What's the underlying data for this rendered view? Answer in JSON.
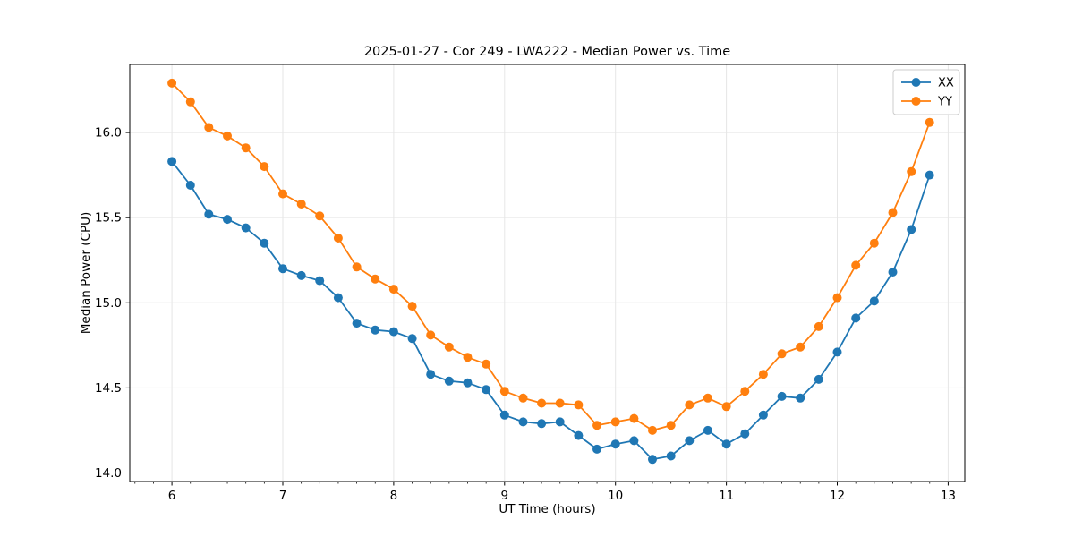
{
  "chart_data": {
    "type": "line",
    "title": "2025-01-27 - Cor 249 - LWA222 - Median Power vs. Time",
    "xlabel": "UT Time (hours)",
    "ylabel": "Median Power (CPU)",
    "xlim": [
      5.62,
      13.15
    ],
    "ylim": [
      13.95,
      16.4
    ],
    "x_ticks": [
      6,
      7,
      8,
      9,
      10,
      11,
      12,
      13
    ],
    "x_tick_labels": [
      "6",
      "7",
      "8",
      "9",
      "10",
      "11",
      "12",
      "13"
    ],
    "x_minor_tick_step": 0.16667,
    "y_ticks": [
      14.0,
      14.5,
      15.0,
      15.5,
      16.0
    ],
    "y_tick_labels": [
      "14.0",
      "14.5",
      "15.0",
      "15.5",
      "16.0"
    ],
    "grid": true,
    "legend_position": "upper right",
    "x": [
      6.0,
      6.167,
      6.333,
      6.5,
      6.667,
      6.833,
      7.0,
      7.167,
      7.333,
      7.5,
      7.667,
      7.833,
      8.0,
      8.167,
      8.333,
      8.5,
      8.667,
      8.833,
      9.0,
      9.167,
      9.333,
      9.5,
      9.667,
      9.833,
      10.0,
      10.167,
      10.333,
      10.5,
      10.667,
      10.833,
      11.0,
      11.167,
      11.333,
      11.5,
      11.667,
      11.833,
      12.0,
      12.167,
      12.333,
      12.5,
      12.667,
      12.833
    ],
    "series": [
      {
        "name": "XX",
        "color": "#1f77b4",
        "values": [
          15.83,
          15.69,
          15.52,
          15.49,
          15.44,
          15.35,
          15.2,
          15.16,
          15.13,
          15.03,
          14.88,
          14.84,
          14.83,
          14.79,
          14.58,
          14.54,
          14.53,
          14.49,
          14.34,
          14.3,
          14.29,
          14.3,
          14.22,
          14.14,
          14.17,
          14.19,
          14.08,
          14.1,
          14.19,
          14.25,
          14.17,
          14.23,
          14.34,
          14.45,
          14.44,
          14.55,
          14.71,
          14.91,
          15.01,
          15.18,
          15.43,
          15.75
        ]
      },
      {
        "name": "YY",
        "color": "#ff7f0e",
        "values": [
          16.29,
          16.18,
          16.03,
          15.98,
          15.91,
          15.8,
          15.64,
          15.58,
          15.51,
          15.38,
          15.21,
          15.14,
          15.08,
          14.98,
          14.81,
          14.74,
          14.68,
          14.64,
          14.48,
          14.44,
          14.41,
          14.41,
          14.4,
          14.28,
          14.3,
          14.32,
          14.25,
          14.28,
          14.4,
          14.44,
          14.39,
          14.48,
          14.58,
          14.7,
          14.74,
          14.86,
          15.03,
          15.22,
          15.35,
          15.53,
          15.77,
          16.06
        ]
      }
    ],
    "style": {
      "grid_color": "#e6e6e6",
      "spine_color": "#000000",
      "tick_color": "#000000",
      "background": "#ffffff",
      "legend_border": "#cccccc",
      "marker_radius": 5,
      "line_width": 1.8
    }
  }
}
